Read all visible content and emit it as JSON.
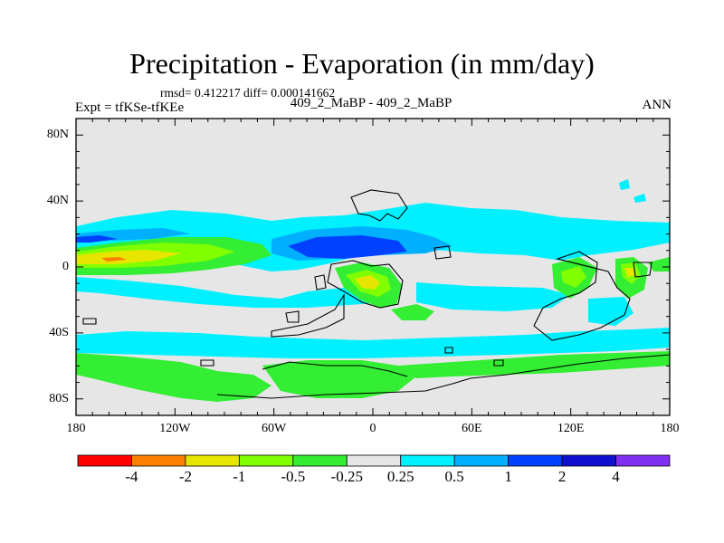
{
  "title": "Precipitation - Evaporation (in mm/day)",
  "stats": "rmsd= 0.412217 diff= 0.000141662",
  "experiment": "Expt = tfKSe-tfKEe",
  "subtitle": "409_2_MaBP - 409_2_MaBP",
  "season": "ANN",
  "lat_axis": [
    {
      "label": "80N",
      "lat": 80
    },
    {
      "label": "40N",
      "lat": 40
    },
    {
      "label": "0",
      "lat": 0
    },
    {
      "label": "40S",
      "lat": -40
    },
    {
      "label": "80S",
      "lat": -80
    }
  ],
  "lon_axis": [
    {
      "label": "180",
      "lon": -180
    },
    {
      "label": "120W",
      "lon": -120
    },
    {
      "label": "60W",
      "lon": -60
    },
    {
      "label": "0",
      "lon": 0
    },
    {
      "label": "60E",
      "lon": 60
    },
    {
      "label": "120E",
      "lon": 120
    },
    {
      "label": "180",
      "lon": 180
    }
  ],
  "legend": {
    "labels": [
      "-4",
      "-2",
      "-1",
      "-0.5",
      "-0.25",
      "0.25",
      "0.5",
      "1",
      "2",
      "4"
    ],
    "colors": [
      "#ff0000",
      "#ff8000",
      "#e6e600",
      "#80ff00",
      "#33ee33",
      "#e6e6e6",
      "#00f0ff",
      "#00b0ff",
      "#0040ff",
      "#1010d0",
      "#8030f0"
    ]
  }
}
